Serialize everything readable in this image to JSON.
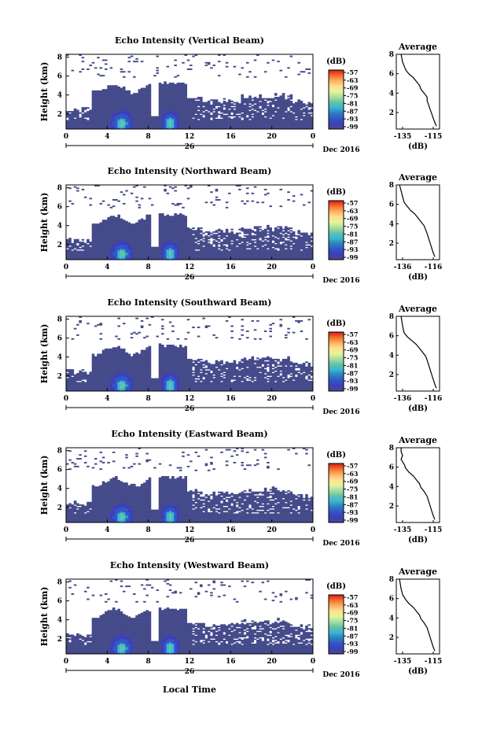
{
  "chart_data": {
    "type": "heatmap",
    "xlabel": "Local Time",
    "date_label": "Dec 2016",
    "date_day": "26",
    "x_range": [
      0,
      24
    ],
    "x_ticks": [
      "0",
      "4",
      "8",
      "12",
      "16",
      "20",
      "0"
    ],
    "y_ticks": [
      "2",
      "4",
      "6",
      "8"
    ],
    "ylabel": "Height (km)",
    "colorbar": {
      "unit": "(dB)",
      "labels": [
        "-57",
        "-63",
        "-69",
        "-75",
        "-81",
        "-87",
        "-93",
        "-99"
      ],
      "colors": [
        "#d7191c",
        "#f46d2a",
        "#fdae61",
        "#fee08b",
        "#e6f598",
        "#abdda4",
        "#66c2a5",
        "#3ab5d8",
        "#2b83ba",
        "#3157c8",
        "#3d3fb8",
        "#454a8a"
      ]
    },
    "panels": [
      {
        "title": "Echo Intensity (Vertical Beam)",
        "avg_title": "Average",
        "avg_xlabel": "(dB)",
        "avg_xticks": [
          "-135",
          "-115"
        ],
        "avg_yticks": [
          "2",
          "4",
          "6",
          "8"
        ],
        "profile": [
          [
            -113,
            0.6
          ],
          [
            -114,
            1.0
          ],
          [
            -115,
            1.4
          ],
          [
            -116,
            1.9
          ],
          [
            -117,
            2.3
          ],
          [
            -118,
            2.8
          ],
          [
            -119,
            3.2
          ],
          [
            -119,
            3.6
          ],
          [
            -121,
            4.0
          ],
          [
            -123,
            4.4
          ],
          [
            -124,
            4.8
          ],
          [
            -126,
            5.2
          ],
          [
            -128,
            5.6
          ],
          [
            -131,
            6.0
          ],
          [
            -133,
            6.4
          ],
          [
            -134,
            6.8
          ],
          [
            -135,
            7.2
          ],
          [
            -136,
            8.0
          ]
        ]
      },
      {
        "title": "Echo Intensity (Northward Beam)",
        "avg_title": "Average",
        "avg_xlabel": "(dB)",
        "avg_xticks": [
          "-136",
          "-116"
        ],
        "avg_yticks": [
          "2",
          "4",
          "6",
          "8"
        ],
        "profile": [
          [
            -115,
            0.6
          ],
          [
            -116,
            1.0
          ],
          [
            -117,
            1.5
          ],
          [
            -118,
            2.0
          ],
          [
            -119,
            2.5
          ],
          [
            -120,
            3.0
          ],
          [
            -121,
            3.4
          ],
          [
            -122,
            3.8
          ],
          [
            -124,
            4.2
          ],
          [
            -126,
            4.6
          ],
          [
            -128,
            5.0
          ],
          [
            -131,
            5.4
          ],
          [
            -133,
            5.8
          ],
          [
            -135,
            6.2
          ],
          [
            -136,
            6.8
          ],
          [
            -137,
            7.4
          ],
          [
            -138,
            8.0
          ]
        ]
      },
      {
        "title": "Echo Intensity (Southward Beam)",
        "avg_title": "Average",
        "avg_xlabel": "(dB)",
        "avg_xticks": [
          "-136",
          "-116"
        ],
        "avg_yticks": [
          "2",
          "4",
          "6",
          "8"
        ],
        "profile": [
          [
            -114,
            0.6
          ],
          [
            -115,
            1.0
          ],
          [
            -116,
            1.5
          ],
          [
            -117,
            2.0
          ],
          [
            -118,
            2.5
          ],
          [
            -119,
            3.0
          ],
          [
            -120,
            3.5
          ],
          [
            -121,
            3.9
          ],
          [
            -123,
            4.3
          ],
          [
            -125,
            4.7
          ],
          [
            -127,
            5.1
          ],
          [
            -130,
            5.5
          ],
          [
            -133,
            5.9
          ],
          [
            -135,
            6.3
          ],
          [
            -136,
            7.0
          ],
          [
            -137,
            8.0
          ]
        ]
      },
      {
        "title": "Echo Intensity (Eastward Beam)",
        "avg_title": "Average",
        "avg_xlabel": "(dB)",
        "avg_xticks": [
          "-135",
          "-115"
        ],
        "avg_yticks": [
          "2",
          "4",
          "6",
          "8"
        ],
        "profile": [
          [
            -114,
            0.6
          ],
          [
            -115,
            1.0
          ],
          [
            -116,
            1.5
          ],
          [
            -117,
            2.0
          ],
          [
            -118,
            2.5
          ],
          [
            -119,
            3.0
          ],
          [
            -121,
            3.5
          ],
          [
            -123,
            3.9
          ],
          [
            -124,
            4.3
          ],
          [
            -126,
            4.7
          ],
          [
            -128,
            5.1
          ],
          [
            -131,
            5.5
          ],
          [
            -133,
            5.9
          ],
          [
            -134,
            6.3
          ],
          [
            -136,
            6.8
          ],
          [
            -135,
            7.2
          ],
          [
            -136,
            7.6
          ],
          [
            -136,
            8.0
          ]
        ]
      },
      {
        "title": "Echo Intensity (Westward Beam)",
        "avg_title": "Average",
        "avg_xlabel": "(dB)",
        "avg_xticks": [
          "-135",
          "-115"
        ],
        "avg_yticks": [
          "2",
          "4",
          "6",
          "8"
        ],
        "profile": [
          [
            -114,
            0.6
          ],
          [
            -115,
            1.0
          ],
          [
            -116,
            1.5
          ],
          [
            -117,
            2.0
          ],
          [
            -118,
            2.5
          ],
          [
            -119,
            3.0
          ],
          [
            -121,
            3.5
          ],
          [
            -123,
            3.9
          ],
          [
            -124,
            4.3
          ],
          [
            -126,
            4.7
          ],
          [
            -128,
            5.1
          ],
          [
            -131,
            5.5
          ],
          [
            -133,
            5.9
          ],
          [
            -135,
            6.4
          ],
          [
            -136,
            7.0
          ],
          [
            -137,
            8.0
          ]
        ]
      }
    ]
  }
}
